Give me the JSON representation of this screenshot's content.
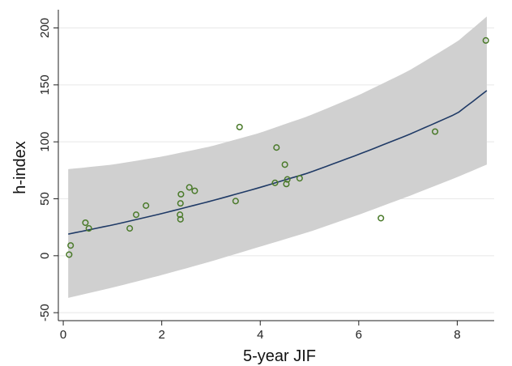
{
  "chart_data": {
    "type": "scatter",
    "title": "",
    "xlabel": "5-year JIF",
    "ylabel": "h-index",
    "xlim": [
      -0.1,
      8.75
    ],
    "ylim": [
      -57,
      216
    ],
    "xticks": [
      0,
      2,
      4,
      6,
      8
    ],
    "yticks": [
      -50,
      0,
      50,
      100,
      150,
      200
    ],
    "grid": "horizontal",
    "legend": "none",
    "points": [
      {
        "x": 0.12,
        "y": 1
      },
      {
        "x": 0.15,
        "y": 9
      },
      {
        "x": 0.45,
        "y": 29
      },
      {
        "x": 0.52,
        "y": 24
      },
      {
        "x": 1.35,
        "y": 24
      },
      {
        "x": 1.48,
        "y": 36
      },
      {
        "x": 1.68,
        "y": 44
      },
      {
        "x": 2.37,
        "y": 36
      },
      {
        "x": 2.38,
        "y": 32
      },
      {
        "x": 2.38,
        "y": 46
      },
      {
        "x": 2.39,
        "y": 54
      },
      {
        "x": 2.56,
        "y": 60
      },
      {
        "x": 2.67,
        "y": 57
      },
      {
        "x": 3.5,
        "y": 48
      },
      {
        "x": 3.58,
        "y": 113
      },
      {
        "x": 4.3,
        "y": 64
      },
      {
        "x": 4.33,
        "y": 95
      },
      {
        "x": 4.5,
        "y": 80
      },
      {
        "x": 4.53,
        "y": 63
      },
      {
        "x": 4.55,
        "y": 67
      },
      {
        "x": 4.8,
        "y": 68
      },
      {
        "x": 6.45,
        "y": 33
      },
      {
        "x": 7.55,
        "y": 109
      },
      {
        "x": 8.58,
        "y": 189
      }
    ],
    "fit_line": {
      "x": [
        0.1,
        1,
        2,
        3,
        4,
        5,
        6,
        7,
        8,
        8.6
      ],
      "y": [
        19,
        27,
        37,
        48,
        60,
        73,
        89,
        106,
        125,
        145
      ]
    },
    "confidence_band": {
      "x": [
        0.1,
        1,
        2,
        3,
        4,
        5,
        6,
        7,
        8,
        8.6
      ],
      "upper": [
        76,
        80,
        87,
        96,
        108,
        123,
        141,
        162,
        188,
        210
      ],
      "lower": [
        -37,
        -28,
        -17,
        -5,
        8,
        21,
        36,
        52,
        69,
        80
      ]
    },
    "colors": {
      "band": "#d0d0d0",
      "fit_line": "#1f3a66",
      "point_edge": "#4a7a2a",
      "grid": "#e8e8e8",
      "axis": "#222222"
    }
  }
}
